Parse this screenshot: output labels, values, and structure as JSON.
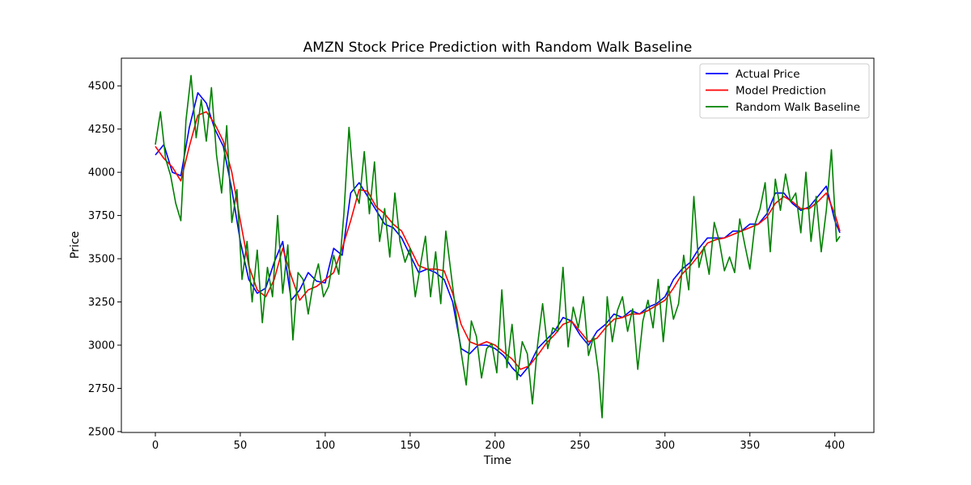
{
  "chart_data": {
    "type": "line",
    "title": "AMZN Stock Price Prediction with Random Walk Baseline",
    "xlabel": "Time",
    "ylabel": "Price",
    "xlim": [
      -20,
      423
    ],
    "ylim": [
      2495,
      4660
    ],
    "xticks": [
      0,
      50,
      100,
      150,
      200,
      250,
      300,
      350,
      400
    ],
    "yticks": [
      2500,
      2750,
      3000,
      3250,
      3500,
      3750,
      4000,
      4250,
      4500
    ],
    "grid": false,
    "legend_position": "top-right",
    "series": [
      {
        "name": "Actual Price",
        "color": "#0000ff",
        "x": [
          0,
          5,
          10,
          15,
          20,
          25,
          30,
          35,
          40,
          45,
          50,
          55,
          60,
          65,
          70,
          75,
          80,
          85,
          90,
          95,
          100,
          105,
          110,
          115,
          120,
          125,
          130,
          135,
          140,
          145,
          150,
          155,
          160,
          165,
          170,
          175,
          180,
          185,
          190,
          195,
          200,
          205,
          210,
          215,
          220,
          225,
          230,
          235,
          240,
          245,
          250,
          255,
          260,
          265,
          270,
          275,
          280,
          285,
          290,
          295,
          300,
          305,
          310,
          315,
          320,
          325,
          330,
          335,
          340,
          345,
          350,
          355,
          360,
          365,
          370,
          375,
          380,
          385,
          390,
          395,
          400,
          403
        ],
        "values": [
          4100,
          4160,
          4000,
          3980,
          4260,
          4460,
          4400,
          4250,
          4150,
          3900,
          3600,
          3380,
          3300,
          3330,
          3480,
          3600,
          3260,
          3320,
          3420,
          3370,
          3360,
          3560,
          3520,
          3880,
          3940,
          3860,
          3780,
          3700,
          3680,
          3620,
          3520,
          3420,
          3440,
          3420,
          3380,
          3250,
          2980,
          2950,
          3000,
          3000,
          2980,
          2940,
          2870,
          2820,
          2880,
          2980,
          3030,
          3080,
          3160,
          3140,
          3060,
          3000,
          3080,
          3120,
          3180,
          3160,
          3200,
          3180,
          3220,
          3240,
          3280,
          3380,
          3440,
          3480,
          3560,
          3620,
          3620,
          3620,
          3660,
          3660,
          3700,
          3700,
          3760,
          3880,
          3880,
          3820,
          3780,
          3800,
          3860,
          3920,
          3720,
          3650
        ]
      },
      {
        "name": "Model Prediction",
        "color": "#ff0000",
        "x": [
          0,
          5,
          10,
          15,
          20,
          25,
          30,
          35,
          40,
          45,
          50,
          55,
          60,
          65,
          70,
          75,
          80,
          85,
          90,
          95,
          100,
          105,
          110,
          115,
          120,
          125,
          130,
          135,
          140,
          145,
          150,
          155,
          160,
          165,
          170,
          175,
          180,
          185,
          190,
          195,
          200,
          205,
          210,
          215,
          220,
          225,
          230,
          235,
          240,
          245,
          250,
          255,
          260,
          265,
          270,
          275,
          280,
          285,
          290,
          295,
          300,
          305,
          310,
          315,
          320,
          325,
          330,
          335,
          340,
          345,
          350,
          355,
          360,
          365,
          370,
          375,
          380,
          385,
          390,
          395,
          400,
          403
        ],
        "values": [
          4150,
          4080,
          4030,
          3950,
          4150,
          4330,
          4350,
          4280,
          4180,
          4000,
          3720,
          3460,
          3320,
          3280,
          3380,
          3560,
          3400,
          3260,
          3320,
          3340,
          3380,
          3420,
          3560,
          3720,
          3900,
          3890,
          3800,
          3760,
          3700,
          3660,
          3560,
          3460,
          3440,
          3440,
          3430,
          3300,
          3120,
          3020,
          3000,
          3020,
          3000,
          2960,
          2920,
          2860,
          2880,
          2940,
          3010,
          3060,
          3120,
          3140,
          3080,
          3020,
          3040,
          3100,
          3150,
          3160,
          3180,
          3180,
          3200,
          3230,
          3260,
          3330,
          3410,
          3460,
          3520,
          3590,
          3610,
          3620,
          3640,
          3660,
          3680,
          3700,
          3740,
          3820,
          3860,
          3830,
          3790,
          3790,
          3830,
          3880,
          3760,
          3660
        ]
      },
      {
        "name": "Random Walk Baseline",
        "color": "#008000",
        "x": [
          0,
          3,
          6,
          9,
          12,
          15,
          18,
          21,
          24,
          27,
          30,
          33,
          36,
          39,
          42,
          45,
          48,
          51,
          54,
          57,
          60,
          63,
          66,
          69,
          72,
          75,
          78,
          81,
          84,
          87,
          90,
          93,
          96,
          99,
          102,
          105,
          108,
          111,
          114,
          117,
          120,
          123,
          126,
          129,
          132,
          135,
          138,
          141,
          144,
          147,
          150,
          153,
          156,
          159,
          162,
          165,
          168,
          171,
          174,
          177,
          180,
          183,
          186,
          189,
          192,
          195,
          198,
          201,
          204,
          207,
          210,
          213,
          216,
          219,
          222,
          225,
          228,
          231,
          234,
          237,
          240,
          243,
          246,
          249,
          252,
          255,
          258,
          261,
          263,
          266,
          269,
          272,
          275,
          278,
          281,
          284,
          287,
          290,
          293,
          296,
          299,
          302,
          305,
          308,
          311,
          314,
          317,
          320,
          323,
          326,
          329,
          332,
          335,
          338,
          341,
          344,
          347,
          350,
          353,
          356,
          359,
          362,
          365,
          368,
          371,
          374,
          377,
          380,
          383,
          386,
          389,
          392,
          395,
          398,
          401,
          403
        ],
        "values": [
          4160,
          4350,
          4080,
          3980,
          3820,
          3720,
          4300,
          4560,
          4200,
          4420,
          4180,
          4490,
          4100,
          3880,
          4270,
          3710,
          3900,
          3380,
          3600,
          3250,
          3550,
          3130,
          3450,
          3280,
          3750,
          3300,
          3580,
          3030,
          3420,
          3380,
          3180,
          3360,
          3470,
          3280,
          3340,
          3520,
          3410,
          3760,
          4260,
          3900,
          3820,
          4120,
          3760,
          4060,
          3600,
          3790,
          3510,
          3880,
          3600,
          3480,
          3560,
          3280,
          3460,
          3630,
          3280,
          3540,
          3240,
          3660,
          3420,
          3180,
          2960,
          2770,
          3140,
          3050,
          2810,
          2980,
          3010,
          2840,
          3320,
          2870,
          3120,
          2800,
          3020,
          2950,
          2660,
          3000,
          3240,
          2980,
          3100,
          3080,
          3450,
          2990,
          3220,
          3100,
          3280,
          2940,
          3050,
          2830,
          2580,
          3280,
          3020,
          3200,
          3280,
          3080,
          3210,
          2860,
          3140,
          3260,
          3100,
          3380,
          3020,
          3340,
          3150,
          3240,
          3520,
          3320,
          3860,
          3450,
          3570,
          3410,
          3710,
          3600,
          3430,
          3510,
          3420,
          3730,
          3580,
          3440,
          3700,
          3790,
          3940,
          3540,
          3960,
          3780,
          3990,
          3830,
          3880,
          3650,
          4000,
          3600,
          3860,
          3540,
          3780,
          4130,
          3600,
          3630
        ]
      }
    ]
  }
}
